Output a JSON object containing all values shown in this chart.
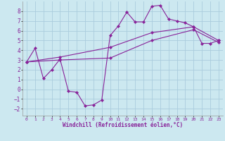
{
  "xlabel": "Windchill (Refroidissement éolien,°C)",
  "bg_color": "#cce8f0",
  "grid_color": "#aaccdd",
  "line_color": "#882299",
  "xlim": [
    -0.5,
    23.5
  ],
  "ylim": [
    -2.7,
    9.0
  ],
  "xticks": [
    0,
    1,
    2,
    3,
    4,
    5,
    6,
    7,
    8,
    9,
    10,
    11,
    12,
    13,
    14,
    15,
    16,
    17,
    18,
    19,
    20,
    21,
    22,
    23
  ],
  "yticks": [
    -2,
    -1,
    0,
    1,
    2,
    3,
    4,
    5,
    6,
    7,
    8
  ],
  "line1_x": [
    0,
    1,
    2,
    3,
    4,
    5,
    6,
    7,
    8,
    9,
    10,
    11,
    12,
    13,
    14,
    15,
    16,
    17,
    18,
    19,
    20,
    21,
    22,
    23
  ],
  "line1_y": [
    2.8,
    4.2,
    1.1,
    2.0,
    3.1,
    -0.2,
    -0.3,
    -1.7,
    -1.6,
    -1.1,
    5.5,
    6.5,
    7.9,
    6.9,
    6.9,
    8.5,
    8.6,
    7.2,
    7.0,
    6.8,
    6.4,
    4.7,
    4.7,
    5.0
  ],
  "line2_x": [
    0,
    4,
    10,
    15,
    20,
    23
  ],
  "line2_y": [
    2.8,
    3.3,
    4.3,
    5.8,
    6.4,
    5.0
  ],
  "line3_x": [
    0,
    4,
    10,
    15,
    20,
    23
  ],
  "line3_y": [
    2.8,
    3.0,
    3.2,
    5.0,
    6.1,
    4.8
  ]
}
